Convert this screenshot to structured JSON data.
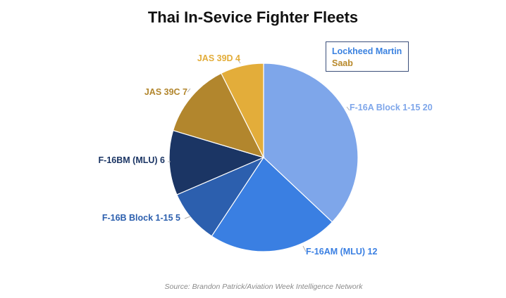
{
  "title": "Thai In-Sevice Fighter Fleets",
  "source": "Source: Brandon Patrick/Aviation Week Intelligence Network",
  "legend": [
    {
      "label": "Lockheed Martin",
      "color": "#3b82e0"
    },
    {
      "label": "Saab",
      "color": "#b8892b"
    }
  ],
  "chart_data": {
    "type": "pie",
    "title": "Thai In-Sevice Fighter Fleets",
    "slices": [
      {
        "label": "F-16A Block 1-15 20",
        "category": "F-16A Block 1-15",
        "value": 20,
        "color": "#7ea6ea",
        "labelColor": "#7ea6ea"
      },
      {
        "label": "F-16AM (MLU) 12",
        "category": "F-16AM (MLU)",
        "value": 12,
        "color": "#3a7fe2",
        "labelColor": "#3a7fe2"
      },
      {
        "label": "F-16B Block 1-15 5",
        "category": "F-16B Block 1-15",
        "value": 5,
        "color": "#2c5fae",
        "labelColor": "#2c5fae"
      },
      {
        "label": "F-16BM (MLU) 6",
        "category": "F-16BM (MLU)",
        "value": 6,
        "color": "#1b3564",
        "labelColor": "#1b3564"
      },
      {
        "label": "JAS 39C 7",
        "category": "JAS 39C",
        "value": 7,
        "color": "#b2862d",
        "labelColor": "#b2862d"
      },
      {
        "label": "JAS 39D 4",
        "category": "JAS 39D",
        "value": 4,
        "color": "#e3ad3a",
        "labelColor": "#e3ad3a"
      }
    ],
    "legend_position": "top-right"
  }
}
